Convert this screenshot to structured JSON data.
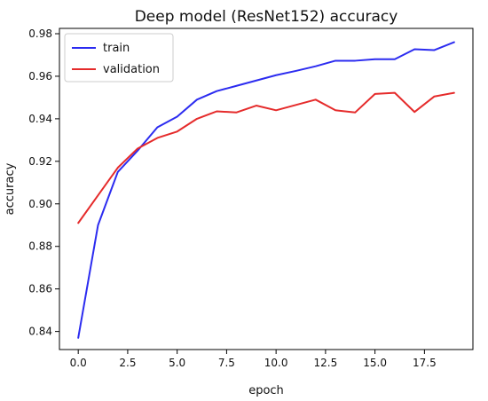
{
  "chart_data": {
    "type": "line",
    "title": "Deep model (ResNet152) accuracy",
    "xlabel": "epoch",
    "ylabel": "accuracy",
    "xlim": [
      -0.95,
      19.95
    ],
    "ylim": [
      0.8315,
      0.9825
    ],
    "x_ticks": [
      0.0,
      2.5,
      5.0,
      7.5,
      10.0,
      12.5,
      15.0,
      17.5
    ],
    "x_tick_labels": [
      "0.0",
      "2.5",
      "5.0",
      "7.5",
      "10.0",
      "12.5",
      "15.0",
      "17.5"
    ],
    "y_ticks": [
      0.84,
      0.86,
      0.88,
      0.9,
      0.92,
      0.94,
      0.96,
      0.98
    ],
    "y_tick_labels": [
      "0.84",
      "0.86",
      "0.88",
      "0.90",
      "0.92",
      "0.94",
      "0.96",
      "0.98"
    ],
    "grid": false,
    "legend_position": "top-left",
    "x": [
      0,
      1,
      2,
      3,
      4,
      5,
      6,
      7,
      8,
      9,
      10,
      11,
      12,
      13,
      14,
      15,
      16,
      17,
      18,
      19
    ],
    "series": [
      {
        "name": "train",
        "color": "#2c2cf0",
        "values": [
          0.837,
          0.89,
          0.915,
          0.925,
          0.936,
          0.941,
          0.949,
          0.953,
          0.9555,
          0.958,
          0.9605,
          0.9625,
          0.9647,
          0.9673,
          0.9673,
          0.968,
          0.968,
          0.9727,
          0.9723,
          0.976
        ]
      },
      {
        "name": "validation",
        "color": "#e52b2b",
        "values": [
          0.891,
          0.904,
          0.917,
          0.926,
          0.931,
          0.934,
          0.94,
          0.9435,
          0.943,
          0.9462,
          0.944,
          0.9465,
          0.949,
          0.944,
          0.943,
          0.9517,
          0.9522,
          0.9432,
          0.9505,
          0.9522
        ]
      }
    ]
  }
}
